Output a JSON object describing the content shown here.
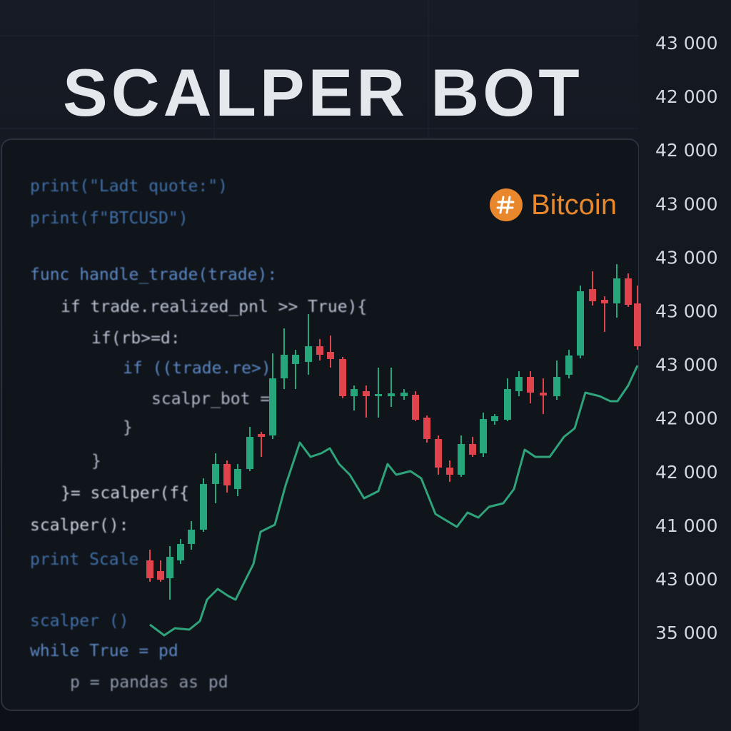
{
  "title": "SCALPER BOT",
  "brand": "Bitcoin",
  "code": [
    "print(\"Ladt quote:\")",
    "print(f\"BTCUSD\")",
    "func handle_trade(trade):",
    "if trade.realized_pnl >> True){",
    "if(rb>=d:",
    "if ((trade.re>)",
    "scalpr_bot =",
    "}",
    "}",
    "}= scalper(f{",
    "scalper():",
    "print Scale",
    "scalper ()",
    "while True = pd",
    "p = pandas as pd"
  ],
  "price_labels": [
    "43 000",
    "42 000",
    "42 000",
    "43 000",
    "43 000",
    "43 000",
    "43 000",
    "42 000",
    "42 000",
    "41 000",
    "43 000",
    "35 000"
  ]
}
